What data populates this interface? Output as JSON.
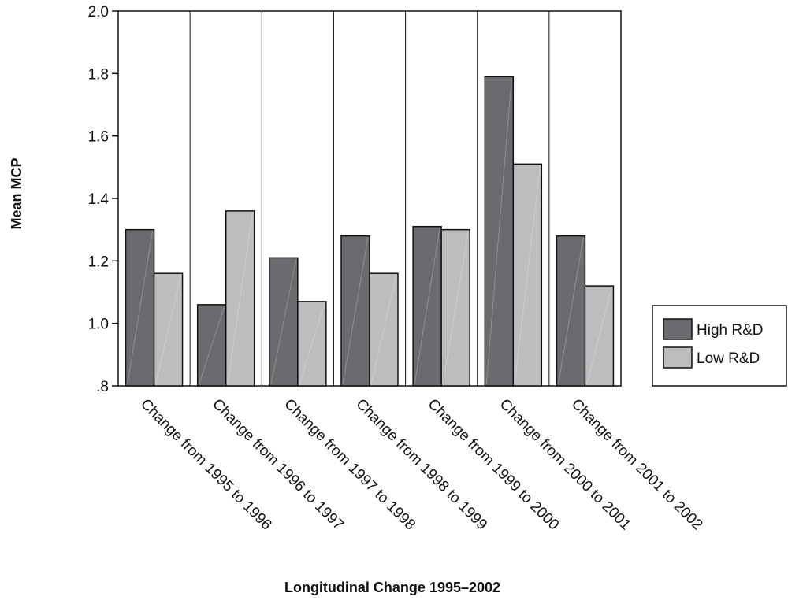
{
  "chart_data": {
    "type": "bar",
    "xlabel": "Longitudinal Change 1995–2002",
    "ylabel": "Mean MCP",
    "ylim": [
      0.8,
      2.0
    ],
    "yticks": [
      0.8,
      1.0,
      1.2,
      1.4,
      1.6,
      1.8,
      2.0
    ],
    "ytick_labels": [
      ".8",
      "1.0",
      "1.2",
      "1.4",
      "1.6",
      "1.8",
      "2.0"
    ],
    "categories": [
      "Change from 1995 to 1996",
      "Change from 1996 to 1997",
      "Change from 1997 to 1998",
      "Change from 1998 to 1999",
      "Change from 1999 to 2000",
      "Change from 2000 to 2001",
      "Change from 2001 to 2002"
    ],
    "series": [
      {
        "name": "High R&D",
        "color": "#6b6b6f",
        "values": [
          1.3,
          1.06,
          1.21,
          1.28,
          1.31,
          1.79,
          1.28
        ]
      },
      {
        "name": "Low R&D",
        "color": "#bdbdbf",
        "values": [
          1.16,
          1.36,
          1.07,
          1.16,
          1.3,
          1.51,
          1.12
        ]
      }
    ],
    "legend": "right",
    "grid": false
  }
}
